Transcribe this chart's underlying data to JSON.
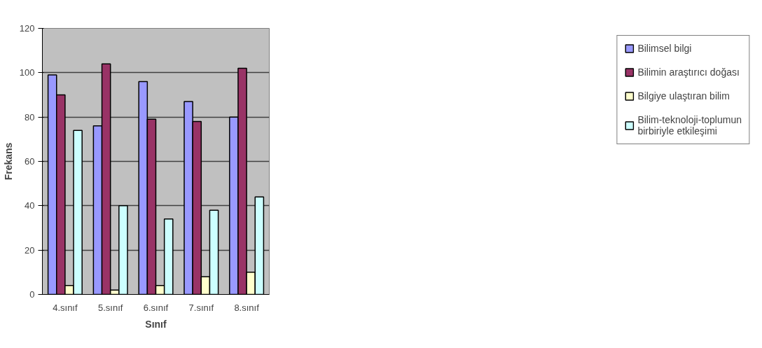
{
  "chart_data": {
    "type": "bar",
    "xlabel": "Sınıf",
    "ylabel": "Frekans",
    "categories": [
      "4.sınıf",
      "5.sınıf",
      "6.sınıf",
      "7.sınıf",
      "8.sınıf"
    ],
    "series": [
      {
        "name": "Bilimsel bilgi",
        "color": "#9999ff",
        "values": [
          99,
          76,
          96,
          87,
          80
        ]
      },
      {
        "name": "Bilimin araştırıcı doğası",
        "color": "#993366",
        "values": [
          90,
          104,
          79,
          78,
          102
        ]
      },
      {
        "name": "Bilgiye ulaştıran bilim",
        "color": "#ffffcc",
        "values": [
          4,
          2,
          4,
          8,
          10
        ]
      },
      {
        "name": "Bilim-teknoloji-toplumun birbiriyle etkileşimi",
        "color": "#ccffff",
        "values": [
          74,
          40,
          34,
          38,
          44
        ]
      }
    ],
    "ylim": [
      0,
      120
    ],
    "yticks": [
      0,
      20,
      40,
      60,
      80,
      100,
      120
    ],
    "grid": "y",
    "legend": "right"
  }
}
